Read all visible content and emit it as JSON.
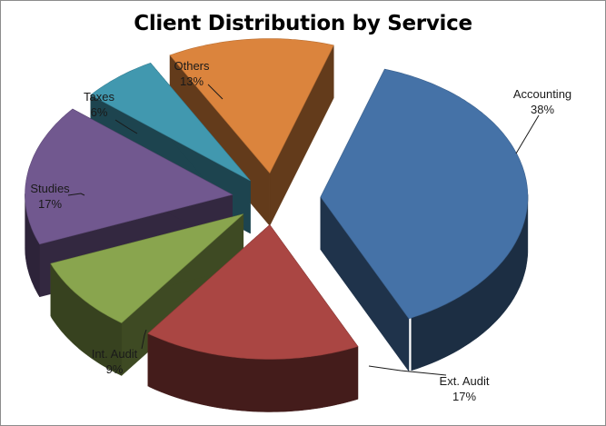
{
  "chart_data": {
    "type": "pie",
    "title": "Client Distribution by Service",
    "style": "3d-exploded",
    "legend": "none",
    "slices": [
      {
        "label": "Accounting",
        "pct_label": "38%",
        "value": 38,
        "color": "#4572a7"
      },
      {
        "label": "Ext. Audit",
        "pct_label": "17%",
        "value": 17,
        "color": "#aa4643"
      },
      {
        "label": "Int. Audit",
        "pct_label": "9%",
        "value": 9,
        "color": "#89a54e"
      },
      {
        "label": "Studies",
        "pct_label": "17%",
        "value": 17,
        "color": "#71588f"
      },
      {
        "label": "Taxes",
        "pct_label": "6%",
        "value": 6,
        "color": "#4198af"
      },
      {
        "label": "Others",
        "pct_label": "13%",
        "value": 13,
        "color": "#db843d"
      }
    ]
  }
}
